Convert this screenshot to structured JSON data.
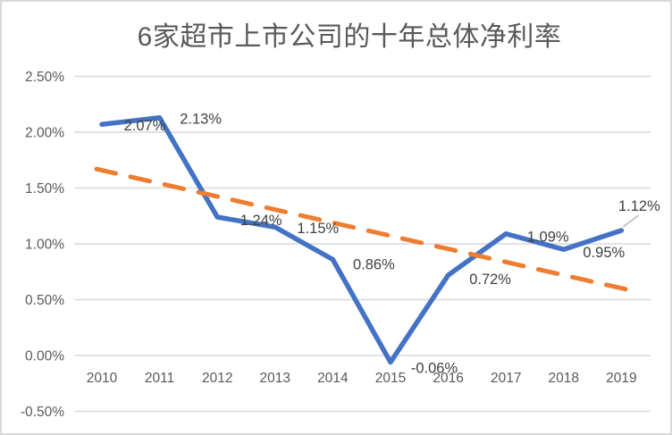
{
  "chart_data": {
    "type": "line",
    "title": "6家超市上市公司的十年总体净利率",
    "xlabel": "",
    "ylabel": "",
    "unit": "%",
    "categories": [
      "2010",
      "2011",
      "2012",
      "2013",
      "2014",
      "2015",
      "2016",
      "2017",
      "2018",
      "2019"
    ],
    "series": [
      {
        "name": "total-net-profit-margin",
        "style": "solid",
        "color": "#4472C4",
        "values": [
          2.07,
          2.13,
          1.24,
          1.15,
          0.86,
          -0.06,
          0.72,
          1.09,
          0.95,
          1.12
        ],
        "labels": [
          "2.07%",
          "2.13%",
          "1.24%",
          "1.15%",
          "0.86%",
          "-0.06%",
          "0.72%",
          "1.09%",
          "0.95%",
          "1.12%"
        ]
      },
      {
        "name": "linear-trendline",
        "style": "dashed",
        "color": "#ED7D31",
        "trend": true,
        "start_value": 1.67,
        "end_value": 0.585
      }
    ],
    "yticks": {
      "values": [
        2.5,
        2.0,
        1.5,
        1.0,
        0.5,
        0.0,
        -0.5
      ],
      "labels": [
        "2.50%",
        "2.00%",
        "1.50%",
        "1.00%",
        "0.50%",
        "0.00%",
        "-0.50%"
      ]
    },
    "ylim": [
      -0.5,
      2.5
    ],
    "grid": true,
    "legend": false,
    "colors": {
      "gridline": "#D9D9D9",
      "axis_text": "#595959",
      "data_label_text": "#404040",
      "title_text": "#595959",
      "leader_line": "#A6A6A6",
      "border": "#D9D9D9",
      "background": "#FFFFFF"
    }
  }
}
